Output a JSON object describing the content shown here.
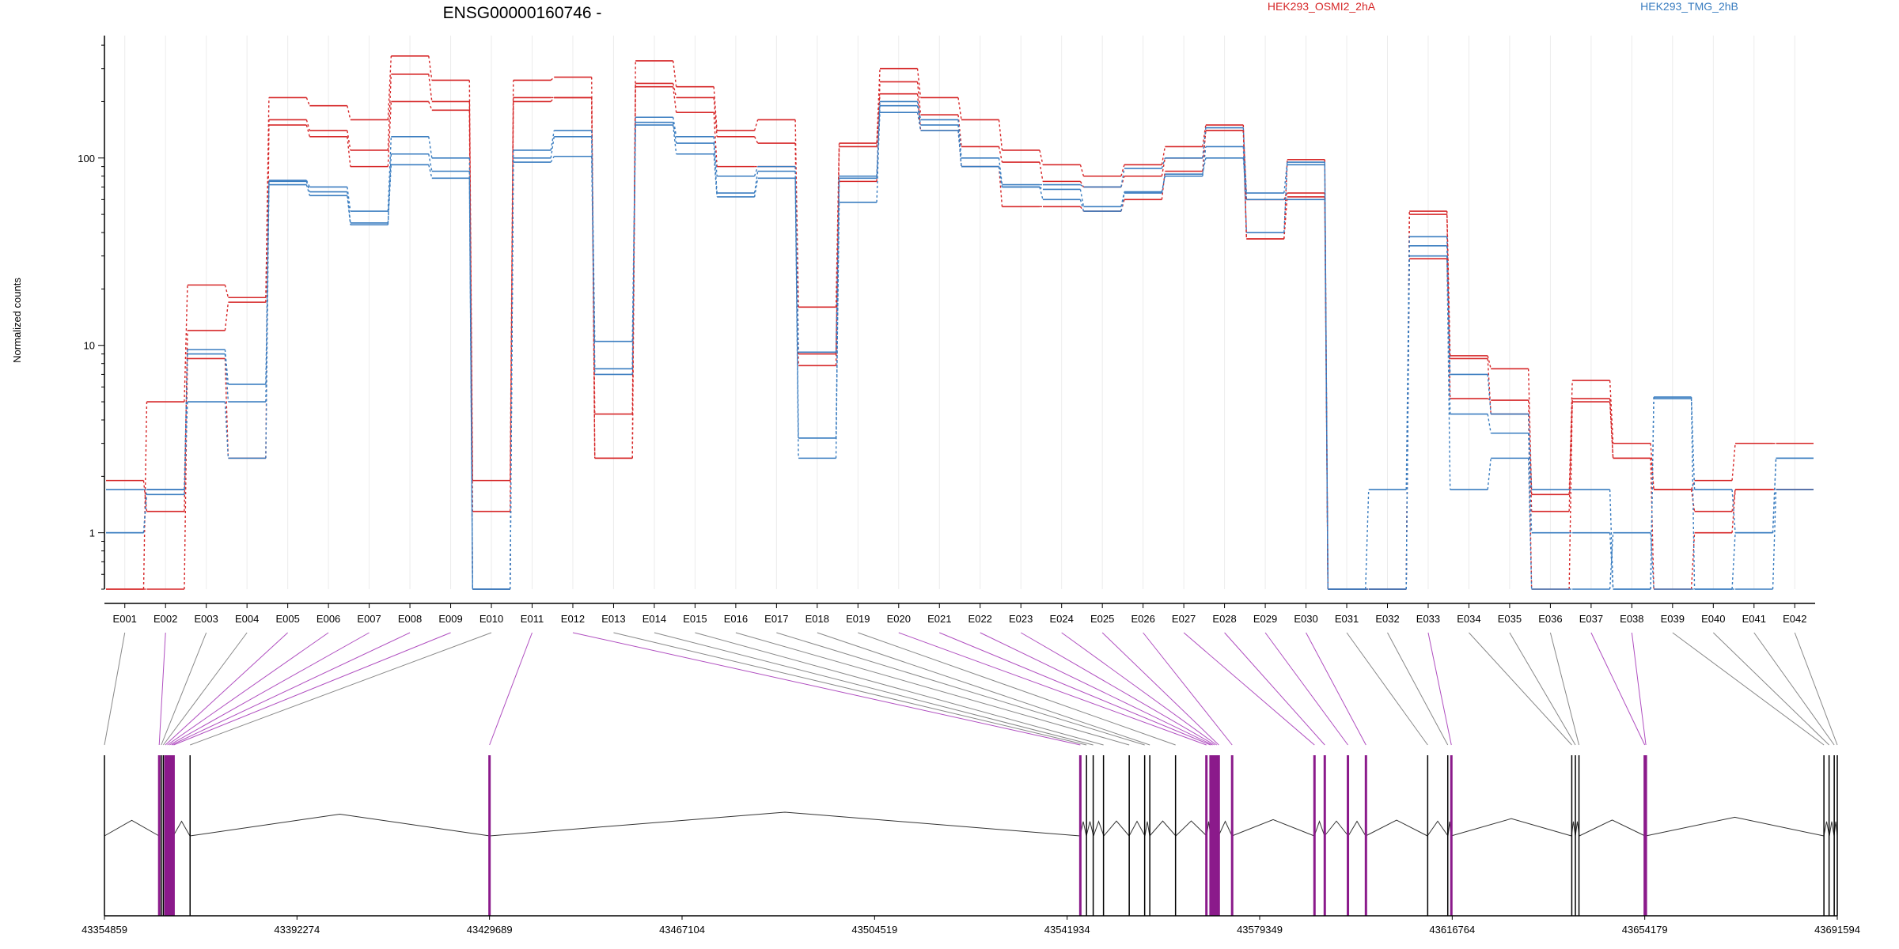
{
  "chart_data": {
    "type": "line",
    "title": "ENSG00000160746 -",
    "xlabel": "",
    "ylabel": "Normalized counts",
    "y_scale": "log",
    "ylim": [
      0.5,
      450
    ],
    "y_ticks": [
      "1",
      "10",
      "100"
    ],
    "categories": [
      "E001",
      "E002",
      "E003",
      "E004",
      "E005",
      "E006",
      "E007",
      "E008",
      "E009",
      "E010",
      "E011",
      "E012",
      "E013",
      "E014",
      "E015",
      "E016",
      "E017",
      "E018",
      "E019",
      "E020",
      "E021",
      "E022",
      "E023",
      "E024",
      "E025",
      "E026",
      "E027",
      "E028",
      "E029",
      "E030",
      "E031",
      "E032",
      "E033",
      "E034",
      "E035",
      "E036",
      "E037",
      "E038",
      "E039",
      "E040",
      "E041",
      "E042"
    ],
    "grid": true,
    "legend": [
      {
        "name": "HEK293_OSMI2_2hA",
        "color": "#d62728",
        "position": "top-center"
      },
      {
        "name": "HEK293_TMG_2hB",
        "color": "#3a7dc0",
        "position": "top-right"
      }
    ],
    "series": [
      {
        "name": "HEK293_OSMI2_2hA",
        "color": "#d62728",
        "values": [
          0.5,
          5,
          21,
          18,
          210,
          190,
          160,
          350,
          260,
          1.9,
          260,
          270,
          2.5,
          330,
          240,
          140,
          160,
          16,
          120,
          300,
          210,
          160,
          110,
          92,
          80,
          92,
          115,
          150,
          37,
          98,
          0.5,
          0.5,
          52,
          8.8,
          7.5,
          1.6,
          6.5,
          3,
          1.7,
          1.9,
          3,
          3
        ]
      },
      {
        "name": "HEK293_OSMI2_2hA",
        "color": "#d62728",
        "values": [
          1.9,
          1.3,
          12,
          17,
          160,
          140,
          110,
          280,
          200,
          1.3,
          210,
          210,
          4.3,
          250,
          210,
          130,
          120,
          9,
          75,
          255,
          170,
          115,
          95,
          75,
          70,
          80,
          100,
          140,
          60,
          65,
          0.5,
          0.5,
          50,
          5.2,
          5.1,
          1.3,
          5.2,
          2.5,
          1.7,
          1.3,
          1.7,
          1.7
        ]
      },
      {
        "name": "HEK293_OSMI2_2hA",
        "color": "#d62728",
        "values": [
          0.5,
          0.5,
          8.5,
          2.5,
          150,
          130,
          90,
          200,
          180,
          0.5,
          200,
          210,
          2.5,
          240,
          175,
          90,
          90,
          7.8,
          115,
          220,
          140,
          90,
          55,
          55,
          52,
          60,
          85,
          140,
          37,
          62,
          0.5,
          0.5,
          29,
          8.5,
          4.3,
          0.5,
          5,
          2.5,
          0.5,
          1,
          1.7,
          1.7
        ]
      },
      {
        "name": "HEK293_TMG_2hB",
        "color": "#3a7dc0",
        "values": [
          1.7,
          1.7,
          9.5,
          6.2,
          76,
          70,
          52,
          130,
          100,
          0.5,
          110,
          140,
          10.5,
          165,
          130,
          80,
          90,
          9.2,
          80,
          200,
          160,
          100,
          72,
          72,
          70,
          88,
          100,
          145,
          65,
          95,
          0.5,
          1.7,
          38,
          7,
          4.3,
          1.7,
          1.7,
          0.5,
          5.3,
          1.7,
          1,
          2.5
        ]
      },
      {
        "name": "HEK293_TMG_2hB",
        "color": "#3a7dc0",
        "values": [
          1,
          1.7,
          9,
          5,
          75,
          66,
          45,
          105,
          85,
          0.5,
          100,
          130,
          7.5,
          155,
          120,
          65,
          85,
          3.2,
          58,
          190,
          150,
          90,
          70,
          68,
          55,
          66,
          80,
          115,
          40,
          92,
          0.5,
          0.5,
          34,
          4.3,
          3.4,
          1,
          1,
          0.5,
          5.2,
          0.5,
          1,
          2.5
        ]
      },
      {
        "name": "HEK293_TMG_2hB",
        "color": "#3a7dc0",
        "values": [
          1,
          1.6,
          5,
          2.5,
          72,
          63,
          44,
          92,
          78,
          0.5,
          95,
          102,
          7,
          150,
          105,
          62,
          78,
          2.5,
          78,
          175,
          140,
          90,
          70,
          60,
          52,
          65,
          82,
          100,
          60,
          60,
          0.5,
          0.5,
          30,
          1.7,
          2.5,
          0.5,
          0.5,
          1,
          0.5,
          0.5,
          0.5,
          1.7
        ]
      }
    ]
  },
  "gene_model": {
    "coordinate_labels": [
      "43354859",
      "43392274",
      "43429689",
      "43467104",
      "43504519",
      "43541934",
      "43579349",
      "43616764",
      "43654179",
      "43691594"
    ],
    "coordinate_range": [
      43354859,
      43691594
    ],
    "exon_color": "#000000",
    "highlight_color": "#8b1a8b",
    "highlighted_exons": [
      "E002",
      "E005",
      "E006",
      "E007",
      "E008",
      "E009",
      "E011",
      "E012",
      "E020",
      "E021",
      "E022",
      "E023",
      "E024",
      "E025",
      "E026",
      "E027",
      "E028",
      "E029",
      "E030",
      "E033",
      "E037",
      "E038"
    ]
  }
}
